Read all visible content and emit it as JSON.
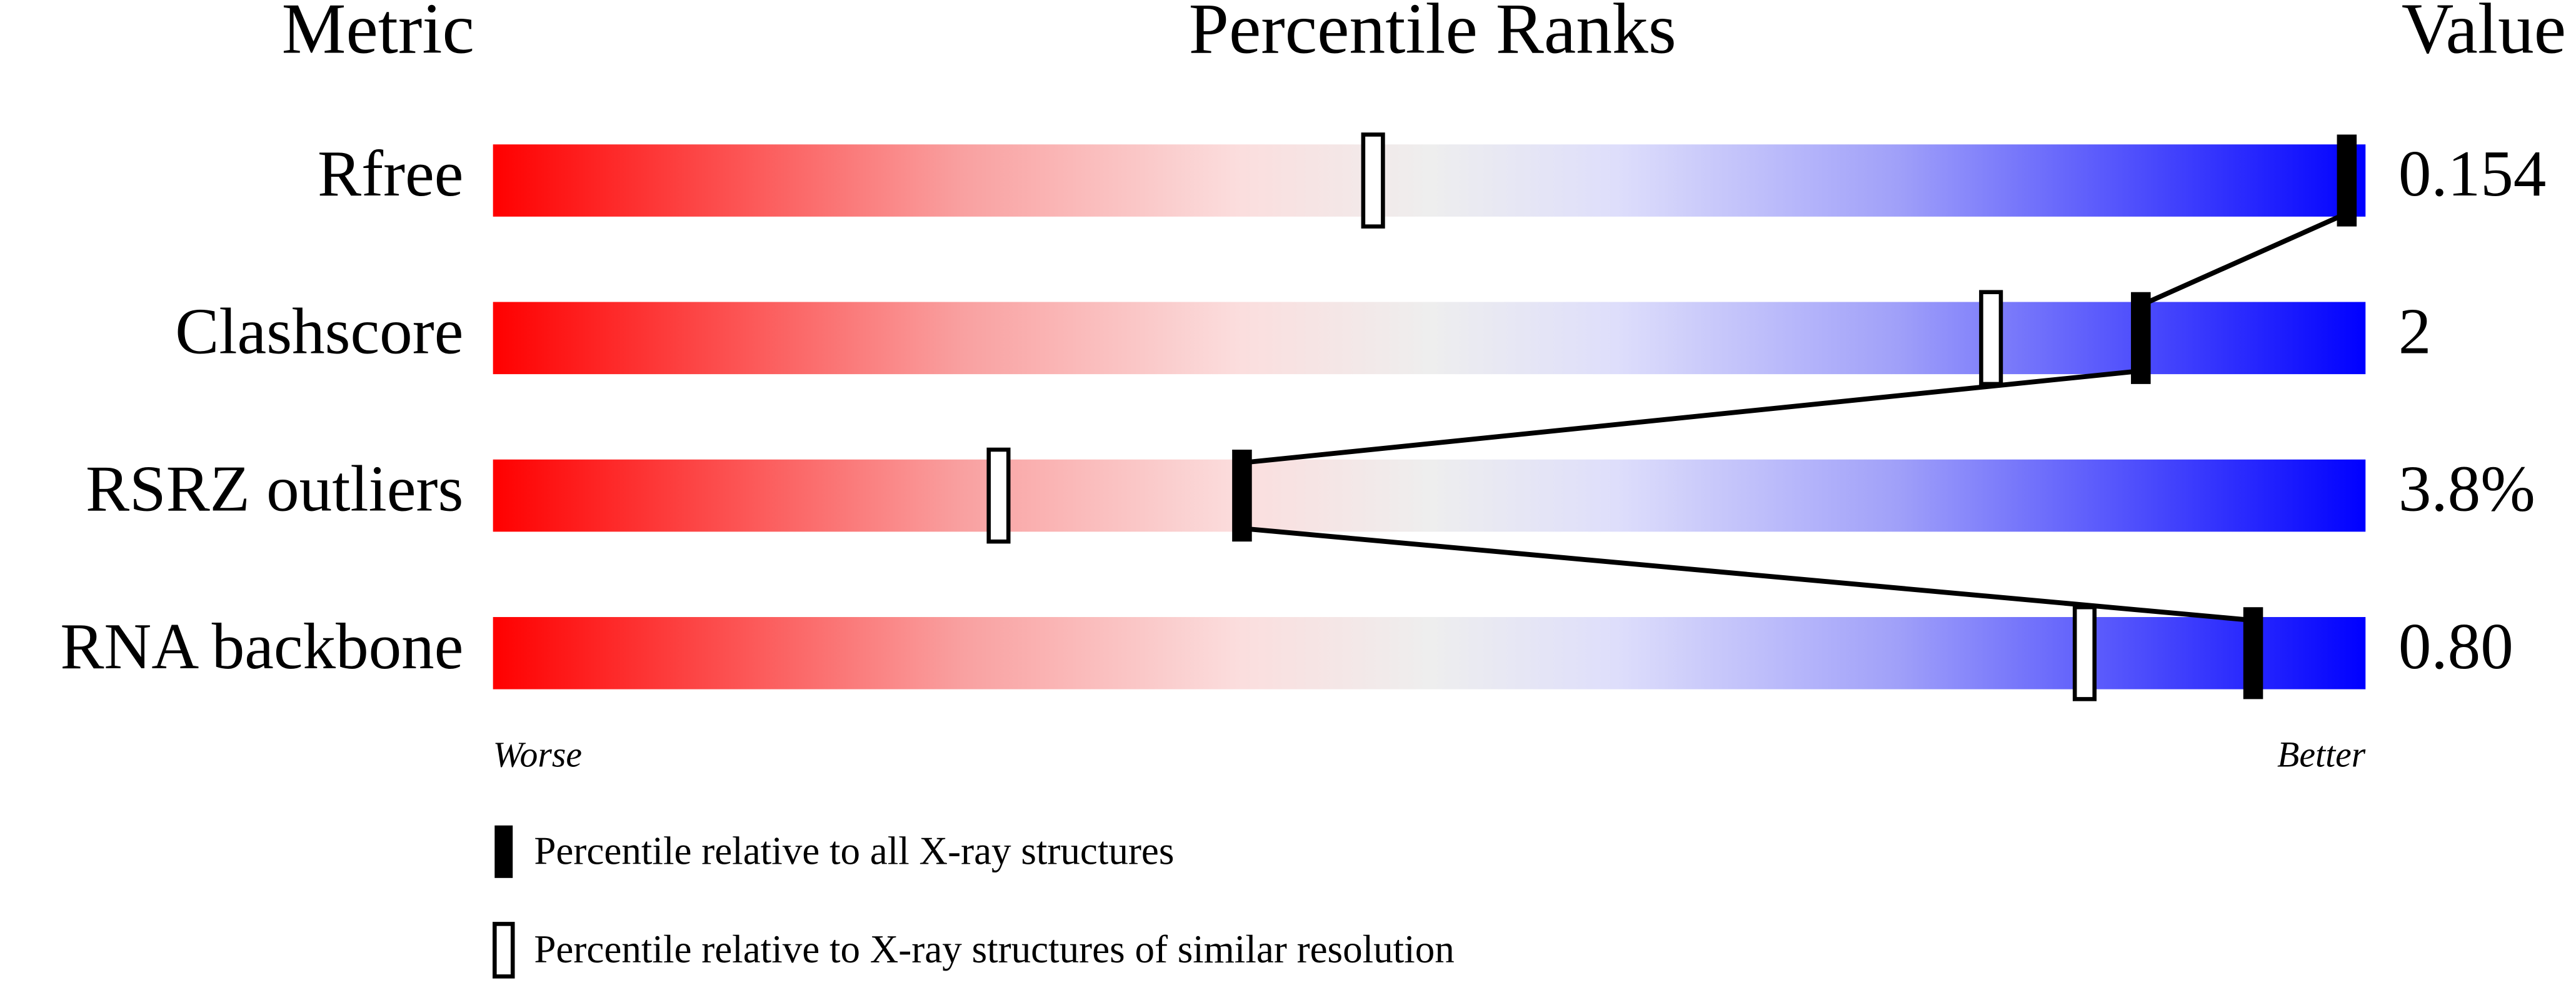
{
  "chart_data": {
    "type": "percentile",
    "title": "Percentile Ranks",
    "metric_header": "Metric",
    "value_header": "Value",
    "categories": [
      "Rfree",
      "Clashscore",
      "RSRZ outliers",
      "RNA backbone"
    ],
    "metric_values": [
      "0.154",
      "2",
      "3.8%",
      "0.80"
    ],
    "series": [
      {
        "name": "Percentile relative to all X-ray structures",
        "color": "#000000",
        "filled": true,
        "values": [
          99,
          88,
          40,
          94
        ]
      },
      {
        "name": "Percentile relative to X-ray structures of similar resolution",
        "color": "#000000",
        "filled": false,
        "values": [
          47,
          80,
          27,
          85
        ]
      }
    ],
    "xlim": [
      0,
      100
    ],
    "x_low_label": "Worse",
    "x_high_label": "Better"
  }
}
